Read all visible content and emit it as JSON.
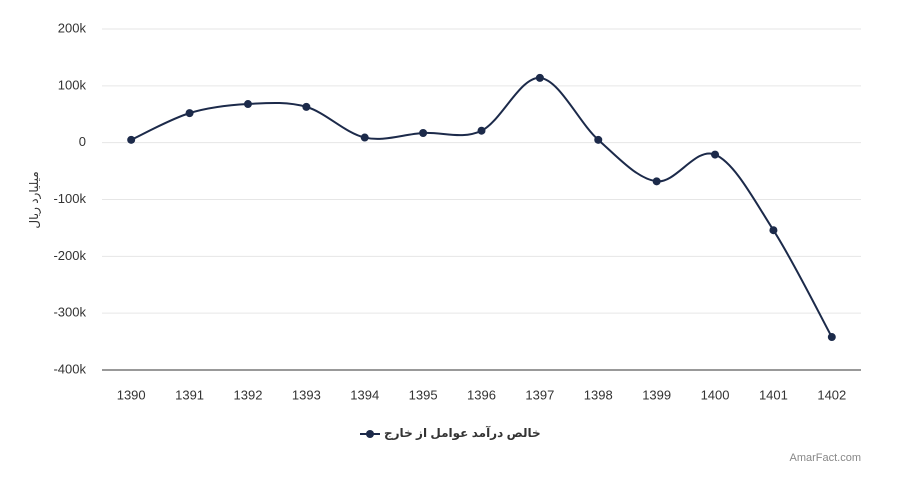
{
  "chart_data": {
    "type": "line",
    "y_label": "میلیارد ریال",
    "credit": "AmarFact.com",
    "categories": [
      "1390",
      "1391",
      "1392",
      "1393",
      "1394",
      "1395",
      "1396",
      "1397",
      "1398",
      "1399",
      "1400",
      "1401",
      "1402"
    ],
    "series": [
      {
        "name": "خالص درآمد عوامل از خارج",
        "color": "#1c2a4a",
        "values": [
          5000,
          52000,
          68000,
          63000,
          9000,
          17000,
          21000,
          114000,
          5000,
          -68000,
          -21000,
          -154000,
          -342000
        ]
      }
    ],
    "ylim": [
      -400000,
      200000
    ],
    "yticks": [
      {
        "value": -400000,
        "label": "-400k"
      },
      {
        "value": -300000,
        "label": "-300k"
      },
      {
        "value": -200000,
        "label": "-200k"
      },
      {
        "value": -100000,
        "label": "-100k"
      },
      0,
      {
        "value": 100000,
        "label": "100k"
      },
      {
        "value": 200000,
        "label": "200k"
      }
    ],
    "grid": true
  }
}
